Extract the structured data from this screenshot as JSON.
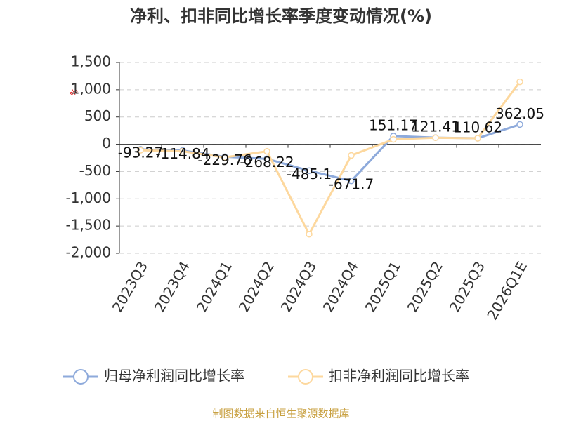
{
  "chart_data": {
    "type": "line",
    "title": "净利、扣非同比增长率季度变动情况(%)",
    "y_label": "%",
    "categories": [
      "2023Q3",
      "2023Q4",
      "2024Q1",
      "2024Q2",
      "2024Q3",
      "2024Q4",
      "2025Q1",
      "2025Q2",
      "2025Q3",
      "2026Q1E"
    ],
    "series": [
      {
        "name": "归母净利润同比增长率",
        "color": "#8eaadb",
        "values": [
          -93.27,
          -114.84,
          -229.76,
          -268.22,
          -485.1,
          -671.7,
          151.17,
          121.41,
          110.62,
          362.05
        ],
        "show_labels": true
      },
      {
        "name": "扣非净利润同比增长率",
        "color": "#fdd89e",
        "values": [
          -110,
          -130,
          -240,
          -130,
          -1650,
          -205,
          90,
          120,
          110,
          1145
        ],
        "show_labels": false
      }
    ],
    "ylim": [
      -2000,
      1500
    ],
    "yticks": [
      {
        "value": -2000,
        "label": "-2,000"
      },
      {
        "value": -1500,
        "label": "-1,500"
      },
      {
        "value": -1000,
        "label": "-1,000"
      },
      -500,
      0,
      500,
      {
        "value": 1000,
        "label": "1,000"
      },
      {
        "value": 1500,
        "label": "1,500"
      }
    ],
    "grid": true,
    "legend": "bottom",
    "source": "制图数据来自恒生聚源数据库"
  }
}
